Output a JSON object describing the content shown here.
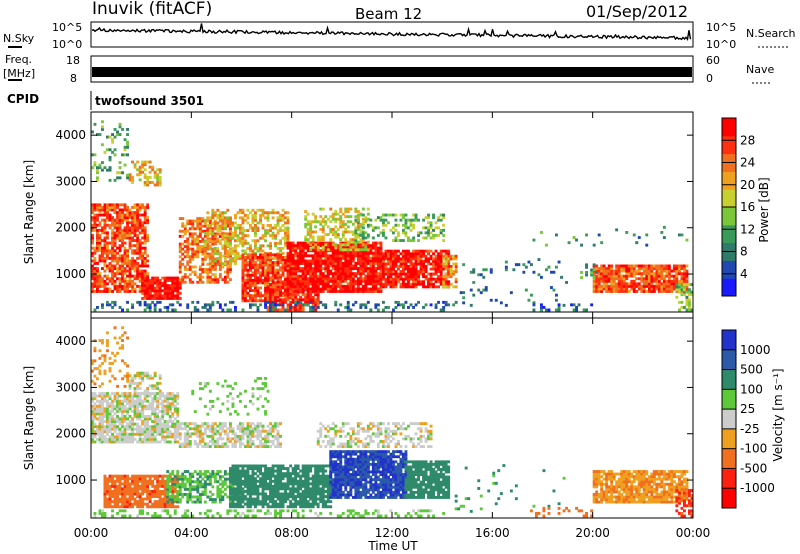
{
  "header": {
    "title": "Inuvik (fitACF)",
    "beam": "Beam 12",
    "date": "01/Sep/2012"
  },
  "top_strips": {
    "nsky_label": "N.Sky",
    "nsky_ticks": [
      "10^5",
      "10^0"
    ],
    "nsearch_label": "N.Search",
    "nsearch_ticks": [
      "10^5",
      "10^0"
    ],
    "freq_label_line1": "Freq.",
    "freq_label_line2": "[MHz]",
    "freq_ticks": [
      "18",
      "8"
    ],
    "nave_label": "Nave",
    "nave_ticks": [
      "60",
      "0"
    ],
    "cpid_label": "CPID",
    "cpid_value": "twofsound 3501"
  },
  "x_axis": {
    "label": "Time UT",
    "tick_labels": [
      "00:00",
      "04:00",
      "08:00",
      "12:00",
      "16:00",
      "20:00",
      "00:00"
    ],
    "range_hours": [
      0,
      24
    ]
  },
  "chart_data": [
    {
      "type": "heatmap",
      "id": "power",
      "xlabel": "Time UT",
      "ylabel": "Slant Range [km]",
      "xlim": [
        0,
        24
      ],
      "ylim": [
        180,
        4500
      ],
      "y_ticks": [
        "1000",
        "2000",
        "3000",
        "4000"
      ],
      "y_tick_values": [
        1000,
        2000,
        3000,
        4000
      ],
      "colorbar": {
        "label": "Power [dB]",
        "tick_labels": [
          "4",
          "8",
          "12",
          "16",
          "20",
          "24",
          "28"
        ],
        "range": [
          0,
          32
        ],
        "colors": [
          "#1a1aff",
          "#1f48b0",
          "#2f7a6a",
          "#3a9a5a",
          "#7ac83a",
          "#c8d030",
          "#f0a020",
          "#f07020",
          "#ff3010",
          "#ff0000"
        ]
      },
      "regions": [
        {
          "t": [
            0.0,
            2.3
          ],
          "r": [
            600,
            2500
          ],
          "v": 26,
          "d": 0.75
        },
        {
          "t": [
            2.0,
            3.6
          ],
          "r": [
            450,
            900
          ],
          "v": 30,
          "d": 0.9
        },
        {
          "t": [
            3.5,
            5.5
          ],
          "r": [
            800,
            2200
          ],
          "v": 24,
          "d": 0.6
        },
        {
          "t": [
            4.5,
            7.8
          ],
          "r": [
            1200,
            2400
          ],
          "v": 20,
          "d": 0.5
        },
        {
          "t": [
            6.0,
            8.0
          ],
          "r": [
            400,
            1400
          ],
          "v": 27,
          "d": 0.8
        },
        {
          "t": [
            7.0,
            9.0
          ],
          "r": [
            200,
            900
          ],
          "v": 28,
          "d": 0.7
        },
        {
          "t": [
            7.8,
            11.5
          ],
          "r": [
            600,
            1700
          ],
          "v": 30,
          "d": 0.9
        },
        {
          "t": [
            8.5,
            11.0
          ],
          "r": [
            1500,
            2400
          ],
          "v": 18,
          "d": 0.45
        },
        {
          "t": [
            11.5,
            14.2
          ],
          "r": [
            700,
            1500
          ],
          "v": 29,
          "d": 0.85
        },
        {
          "t": [
            10.5,
            14.0
          ],
          "r": [
            1700,
            2300
          ],
          "v": 14,
          "d": 0.35
        },
        {
          "t": [
            14.0,
            14.5
          ],
          "r": [
            700,
            1400
          ],
          "v": 22,
          "d": 0.5
        },
        {
          "t": [
            1.5,
            2.8
          ],
          "r": [
            2900,
            3400
          ],
          "v": 20,
          "d": 0.45
        },
        {
          "t": [
            0.0,
            1.5
          ],
          "r": [
            3000,
            4300
          ],
          "v": 12,
          "d": 0.2
        },
        {
          "t": [
            0.0,
            14.5
          ],
          "r": [
            200,
            400
          ],
          "v": 7,
          "d": 0.3
        },
        {
          "t": [
            14.5,
            19.0
          ],
          "r": [
            300,
            1300
          ],
          "v": 8,
          "d": 0.06
        },
        {
          "t": [
            17.5,
            20.0
          ],
          "r": [
            200,
            350
          ],
          "v": 6,
          "d": 0.35
        },
        {
          "t": [
            20.0,
            23.8
          ],
          "r": [
            600,
            1200
          ],
          "v": 26,
          "d": 0.85
        },
        {
          "t": [
            19.5,
            20.2
          ],
          "r": [
            900,
            1200
          ],
          "v": 10,
          "d": 0.4
        },
        {
          "t": [
            23.3,
            24.0
          ],
          "r": [
            200,
            800
          ],
          "v": 14,
          "d": 0.5
        },
        {
          "t": [
            17.0,
            24.0
          ],
          "r": [
            1600,
            2000
          ],
          "v": 10,
          "d": 0.05
        }
      ]
    },
    {
      "type": "heatmap",
      "id": "velocity",
      "xlabel": "Time UT",
      "ylabel": "Slant Range [km]",
      "xlim": [
        0,
        24
      ],
      "ylim": [
        180,
        4500
      ],
      "y_ticks": [
        "1000",
        "2000",
        "3000",
        "4000"
      ],
      "y_tick_values": [
        1000,
        2000,
        3000,
        4000
      ],
      "colorbar": {
        "label": "Velocity [m s⁻¹]",
        "tick_labels": [
          "1000",
          "500",
          "100",
          "25",
          "-25",
          "-100",
          "-500",
          "-1000"
        ],
        "levels": [
          1000,
          500,
          100,
          25,
          -25,
          -100,
          -500,
          -1000
        ],
        "colors": [
          "#2233cc",
          "#2a5aa8",
          "#2e8a6a",
          "#5cc83a",
          "#cccccc",
          "#f0a020",
          "#f07020",
          "#ff2010",
          "#ff0000"
        ]
      },
      "regions": [
        {
          "t": [
            0.0,
            3.5
          ],
          "r": [
            1800,
            2900
          ],
          "v": 0,
          "d": 0.8
        },
        {
          "t": [
            0.5,
            3.5
          ],
          "r": [
            400,
            1100
          ],
          "v": -400,
          "d": 0.85
        },
        {
          "t": [
            3.0,
            6.0
          ],
          "r": [
            500,
            1200
          ],
          "v": 90,
          "d": 0.6
        },
        {
          "t": [
            3.5,
            7.5
          ],
          "r": [
            1700,
            2200
          ],
          "v": 0,
          "d": 0.7
        },
        {
          "t": [
            5.5,
            9.5
          ],
          "r": [
            400,
            1300
          ],
          "v": 250,
          "d": 0.85
        },
        {
          "t": [
            9.5,
            12.5
          ],
          "r": [
            600,
            1600
          ],
          "v": 1000,
          "d": 0.85
        },
        {
          "t": [
            12.5,
            14.2
          ],
          "r": [
            600,
            1400
          ],
          "v": 300,
          "d": 0.85
        },
        {
          "t": [
            9.0,
            13.5
          ],
          "r": [
            1700,
            2200
          ],
          "v": 0,
          "d": 0.45
        },
        {
          "t": [
            1.5,
            2.8
          ],
          "r": [
            2900,
            3300
          ],
          "v": 0,
          "d": 0.5
        },
        {
          "t": [
            0.0,
            1.5
          ],
          "r": [
            3000,
            4300
          ],
          "v": -80,
          "d": 0.2
        },
        {
          "t": [
            4.0,
            7.0
          ],
          "r": [
            2400,
            3200
          ],
          "v": 60,
          "d": 0.12
        },
        {
          "t": [
            14.5,
            19.0
          ],
          "r": [
            300,
            1300
          ],
          "v": 120,
          "d": 0.05
        },
        {
          "t": [
            17.5,
            20.0
          ],
          "r": [
            200,
            400
          ],
          "v": -150,
          "d": 0.3
        },
        {
          "t": [
            20.0,
            23.8
          ],
          "r": [
            500,
            1200
          ],
          "v": -90,
          "d": 0.8
        },
        {
          "t": [
            23.3,
            24.0
          ],
          "r": [
            200,
            800
          ],
          "v": -600,
          "d": 0.6
        },
        {
          "t": [
            0.0,
            14.0
          ],
          "r": [
            200,
            350
          ],
          "v": 50,
          "d": 0.3
        }
      ]
    }
  ]
}
